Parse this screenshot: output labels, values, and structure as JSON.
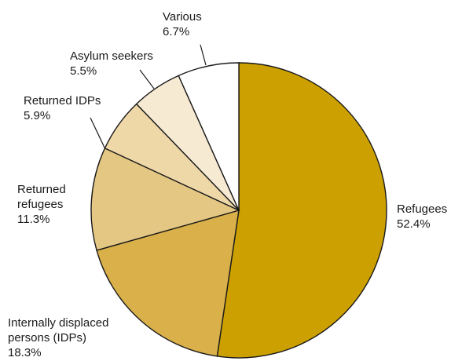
{
  "chart_data": {
    "type": "pie",
    "title": "",
    "start_angle_deg": 0,
    "direction": "clockwise",
    "slices": [
      {
        "label_lines": [
          "Refugees"
        ],
        "value_text": "52.4%",
        "value": 52.4,
        "color": "#cca000"
      },
      {
        "label_lines": [
          "Internally displaced",
          "persons (IDPs)"
        ],
        "value_text": "18.3%",
        "value": 18.3,
        "color": "#d9b04a"
      },
      {
        "label_lines": [
          "Returned",
          "refugees"
        ],
        "value_text": "11.3%",
        "value": 11.3,
        "color": "#e5c784"
      },
      {
        "label_lines": [
          "Returned IDPs"
        ],
        "value_text": "5.9%",
        "value": 5.9,
        "color": "#efd8a8"
      },
      {
        "label_lines": [
          "Asylum seekers"
        ],
        "value_text": "5.5%",
        "value": 5.5,
        "color": "#f7ead3"
      },
      {
        "label_lines": [
          "Various"
        ],
        "value_text": "6.7%",
        "value": 6.7,
        "color": "#ffffff"
      }
    ]
  }
}
